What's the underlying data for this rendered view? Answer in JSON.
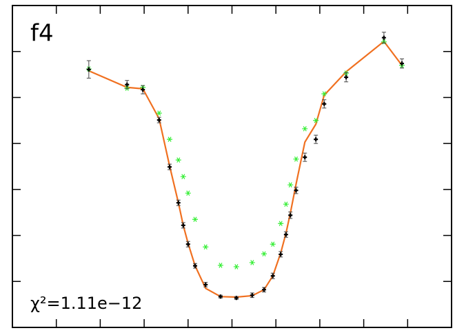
{
  "chart_data": {
    "type": "line",
    "annotations": [
      "f4",
      "χ²=1.11e−12"
    ],
    "x": [
      1.74,
      2.61,
      2.97,
      3.34,
      3.58,
      3.78,
      3.89,
      4.0,
      4.16,
      4.4,
      4.74,
      5.1,
      5.46,
      5.73,
      5.93,
      6.11,
      6.23,
      6.33,
      6.46,
      6.66,
      6.91,
      7.1,
      7.6,
      8.46,
      8.87
    ],
    "series": [
      {
        "mode": "line",
        "color": "#f07020",
        "values": [
          5.58,
          5.22,
          5.19,
          4.54,
          3.51,
          2.71,
          2.22,
          1.83,
          1.34,
          0.85,
          0.67,
          0.66,
          0.69,
          0.82,
          1.12,
          1.62,
          2.05,
          2.49,
          3.12,
          4.03,
          4.42,
          5.05,
          5.56,
          6.22,
          5.7
        ]
      },
      {
        "mode": "markers",
        "color": "#33ee33",
        "values": [
          5.62,
          5.2,
          5.22,
          4.66,
          4.09,
          3.64,
          3.28,
          2.92,
          2.35,
          1.75,
          1.35,
          1.32,
          1.41,
          1.6,
          1.81,
          2.26,
          2.68,
          3.1,
          3.66,
          4.32,
          4.5,
          5.08,
          5.53,
          6.21,
          5.7
        ]
      },
      {
        "mode": "errorbar",
        "color": "#000000",
        "values": [
          5.61,
          5.28,
          5.17,
          4.51,
          3.49,
          2.71,
          2.22,
          1.81,
          1.34,
          0.93,
          0.67,
          0.64,
          0.7,
          0.82,
          1.12,
          1.59,
          2.02,
          2.44,
          2.98,
          3.7,
          4.09,
          4.86,
          5.44,
          6.3,
          5.74
        ],
        "errors": [
          0.19,
          0.09,
          0.09,
          0.06,
          0.06,
          0.06,
          0.06,
          0.06,
          0.05,
          0.05,
          0.03,
          0.03,
          0.05,
          0.05,
          0.06,
          0.06,
          0.06,
          0.07,
          0.07,
          0.09,
          0.09,
          0.09,
          0.1,
          0.12,
          0.1
        ]
      }
    ],
    "xlim": [
      0,
      10
    ],
    "xticks": [
      1,
      2,
      3,
      4,
      5,
      6,
      7,
      8,
      9
    ],
    "ylim": [
      0,
      7
    ],
    "yticks": [
      1,
      2,
      3,
      4,
      5,
      6
    ]
  }
}
